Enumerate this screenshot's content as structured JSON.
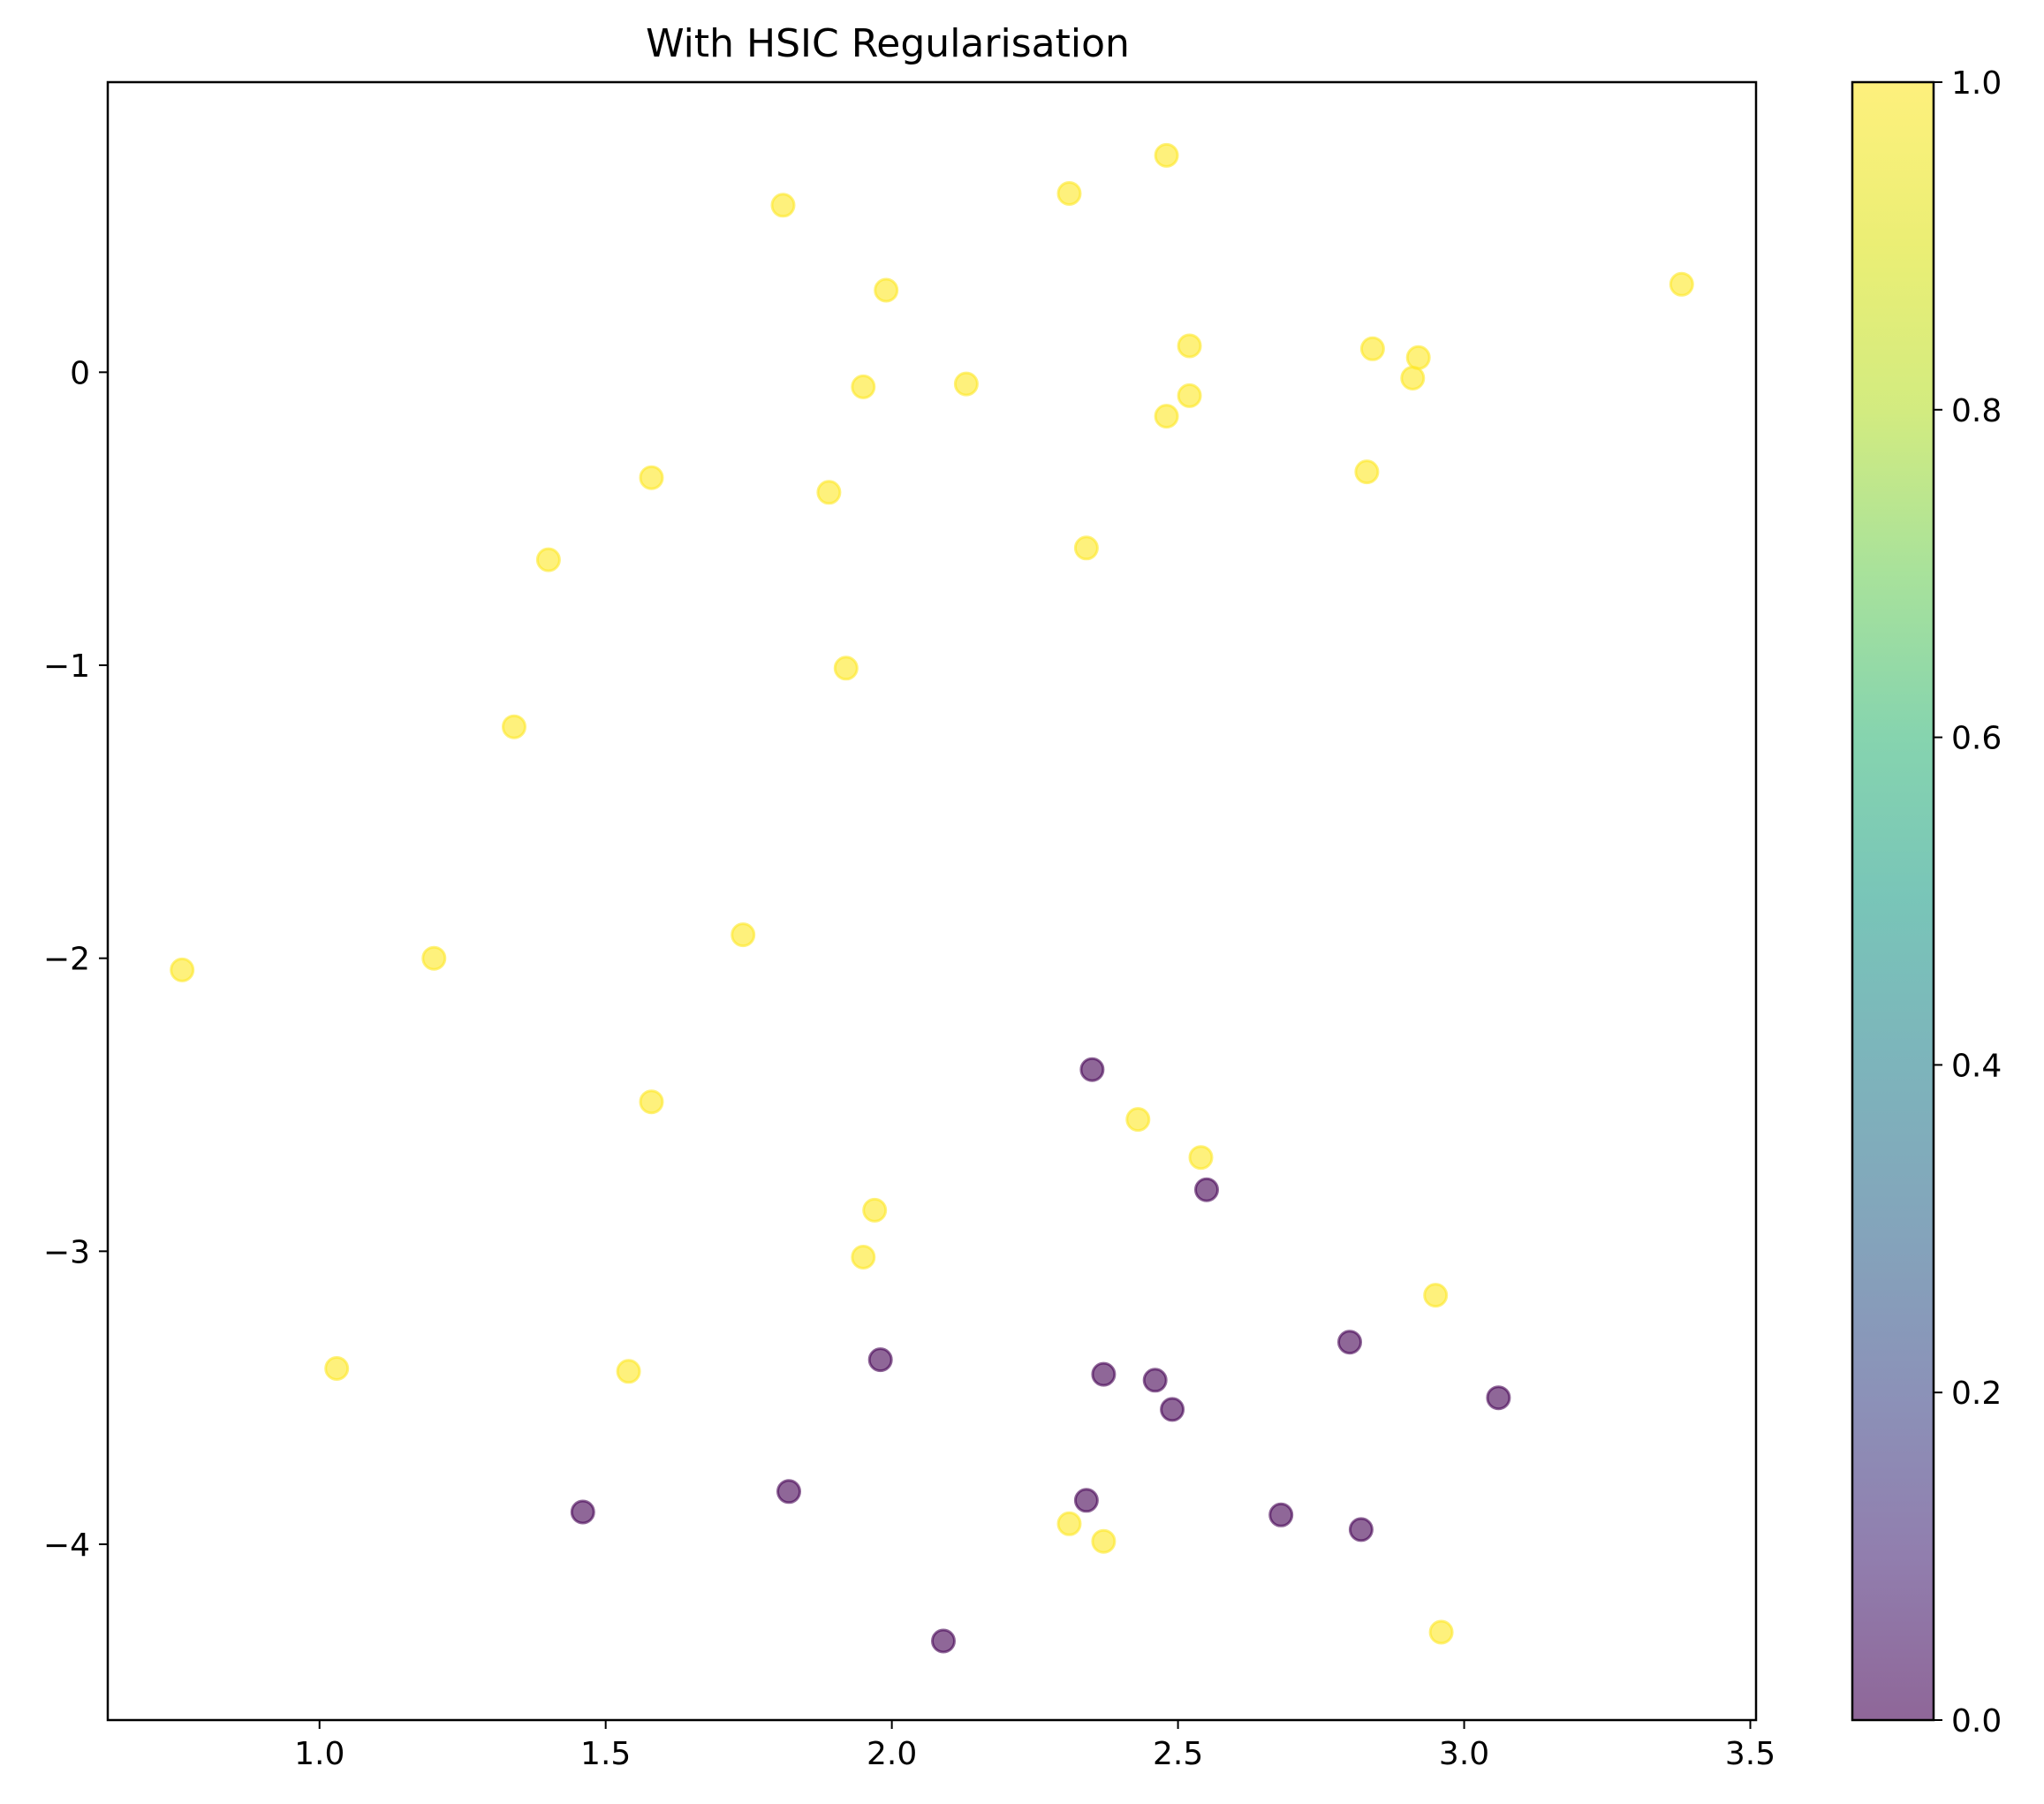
{
  "chart_data": {
    "type": "scatter",
    "title": "With HSIC Regularisation",
    "xlabel": "",
    "ylabel": "",
    "xlim": [
      0.63,
      3.51
    ],
    "ylim": [
      -4.6,
      0.99
    ],
    "x_ticks": [
      1.0,
      1.5,
      2.0,
      2.5,
      3.0,
      3.5
    ],
    "x_tick_labels": [
      "1.0",
      "1.5",
      "2.0",
      "2.5",
      "3.0",
      "3.5"
    ],
    "y_ticks": [
      0,
      -1,
      -2,
      -3,
      -4
    ],
    "y_tick_labels": [
      "0",
      "−1",
      "−2",
      "−3",
      "−4"
    ],
    "grid": false,
    "colormap": "viridis",
    "colorbar": {
      "range": [
        0.0,
        1.0
      ],
      "ticks": [
        0.0,
        0.2,
        0.4,
        0.6,
        0.8,
        1.0
      ],
      "tick_labels": [
        "0.0",
        "0.2",
        "0.4",
        "0.6",
        "0.8",
        "1.0"
      ]
    },
    "colors": {
      "class_1": "#fde725",
      "class_0": "#440154"
    },
    "points": [
      {
        "x": 2.48,
        "y": 0.74,
        "c": 1
      },
      {
        "x": 2.31,
        "y": 0.61,
        "c": 1
      },
      {
        "x": 1.81,
        "y": 0.57,
        "c": 1
      },
      {
        "x": 3.38,
        "y": 0.3,
        "c": 1
      },
      {
        "x": 1.99,
        "y": 0.28,
        "c": 1
      },
      {
        "x": 2.52,
        "y": 0.09,
        "c": 1
      },
      {
        "x": 2.84,
        "y": 0.08,
        "c": 1
      },
      {
        "x": 2.92,
        "y": 0.05,
        "c": 1
      },
      {
        "x": 2.91,
        "y": -0.02,
        "c": 1
      },
      {
        "x": 2.13,
        "y": -0.04,
        "c": 1
      },
      {
        "x": 1.95,
        "y": -0.05,
        "c": 1
      },
      {
        "x": 2.52,
        "y": -0.08,
        "c": 1
      },
      {
        "x": 2.48,
        "y": -0.15,
        "c": 1
      },
      {
        "x": 2.83,
        "y": -0.34,
        "c": 1
      },
      {
        "x": 1.58,
        "y": -0.36,
        "c": 1
      },
      {
        "x": 1.89,
        "y": -0.41,
        "c": 1
      },
      {
        "x": 2.34,
        "y": -0.6,
        "c": 1
      },
      {
        "x": 1.4,
        "y": -0.64,
        "c": 1
      },
      {
        "x": 1.92,
        "y": -1.01,
        "c": 1
      },
      {
        "x": 1.34,
        "y": -1.21,
        "c": 1
      },
      {
        "x": 1.74,
        "y": -1.92,
        "c": 1
      },
      {
        "x": 1.2,
        "y": -2.0,
        "c": 1
      },
      {
        "x": 0.76,
        "y": -2.04,
        "c": 1
      },
      {
        "x": 1.58,
        "y": -2.49,
        "c": 1
      },
      {
        "x": 2.43,
        "y": -2.55,
        "c": 1
      },
      {
        "x": 2.54,
        "y": -2.68,
        "c": 1
      },
      {
        "x": 1.97,
        "y": -2.86,
        "c": 1
      },
      {
        "x": 1.95,
        "y": -3.02,
        "c": 1
      },
      {
        "x": 2.95,
        "y": -3.15,
        "c": 1
      },
      {
        "x": 1.03,
        "y": -3.4,
        "c": 1
      },
      {
        "x": 1.54,
        "y": -3.41,
        "c": 1
      },
      {
        "x": 2.31,
        "y": -3.93,
        "c": 1
      },
      {
        "x": 2.37,
        "y": -3.99,
        "c": 1
      },
      {
        "x": 2.96,
        "y": -4.3,
        "c": 1
      },
      {
        "x": 2.35,
        "y": -2.38,
        "c": 0
      },
      {
        "x": 2.55,
        "y": -2.79,
        "c": 0
      },
      {
        "x": 2.8,
        "y": -3.31,
        "c": 0
      },
      {
        "x": 1.98,
        "y": -3.37,
        "c": 0
      },
      {
        "x": 2.37,
        "y": -3.42,
        "c": 0
      },
      {
        "x": 2.46,
        "y": -3.44,
        "c": 0
      },
      {
        "x": 3.06,
        "y": -3.5,
        "c": 0
      },
      {
        "x": 2.49,
        "y": -3.54,
        "c": 0
      },
      {
        "x": 1.82,
        "y": -3.82,
        "c": 0
      },
      {
        "x": 2.34,
        "y": -3.85,
        "c": 0
      },
      {
        "x": 1.46,
        "y": -3.89,
        "c": 0
      },
      {
        "x": 2.68,
        "y": -3.9,
        "c": 0
      },
      {
        "x": 2.82,
        "y": -3.95,
        "c": 0
      },
      {
        "x": 2.09,
        "y": -4.33,
        "c": 0
      }
    ]
  }
}
